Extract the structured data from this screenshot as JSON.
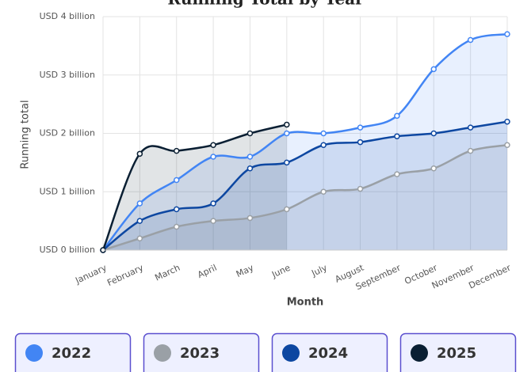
{
  "chart_data": {
    "type": "area",
    "title": "Running Total by Year",
    "x_label": "Month",
    "y_label": "Running total",
    "categories": [
      "January",
      "February",
      "March",
      "April",
      "May",
      "June",
      "July",
      "August",
      "September",
      "October",
      "November",
      "December"
    ],
    "series": [
      {
        "name": "2022",
        "color": "#4285f4",
        "values": [
          0,
          0.8,
          1.2,
          1.6,
          1.6,
          2.0,
          2.0,
          2.1,
          2.3,
          3.1,
          3.6,
          3.7
        ]
      },
      {
        "name": "2023",
        "color": "#9aa0a6",
        "values": [
          0,
          0.2,
          0.4,
          0.5,
          0.55,
          0.7,
          1.0,
          1.05,
          1.3,
          1.4,
          1.7,
          1.8
        ]
      },
      {
        "name": "2024",
        "color": "#0d47a1",
        "values": [
          0,
          0.5,
          0.7,
          0.8,
          1.4,
          1.5,
          1.8,
          1.85,
          1.95,
          2.0,
          2.1,
          2.2
        ]
      },
      {
        "name": "2025",
        "color": "#0a1f33",
        "values": [
          0,
          1.65,
          1.7,
          1.8,
          2.0,
          2.15,
          null,
          null,
          null,
          null,
          null,
          null
        ]
      }
    ],
    "ylim": [
      0,
      4
    ],
    "yticks": [
      {
        "value": 0,
        "label": "USD 0 billion"
      },
      {
        "value": 1,
        "label": "USD 1 billion"
      },
      {
        "value": 2,
        "label": "USD 2 billion"
      },
      {
        "value": 3,
        "label": "USD 3 billion"
      },
      {
        "value": 4,
        "label": "USD 4 billion"
      }
    ],
    "grid": true,
    "legend": "bottom"
  }
}
